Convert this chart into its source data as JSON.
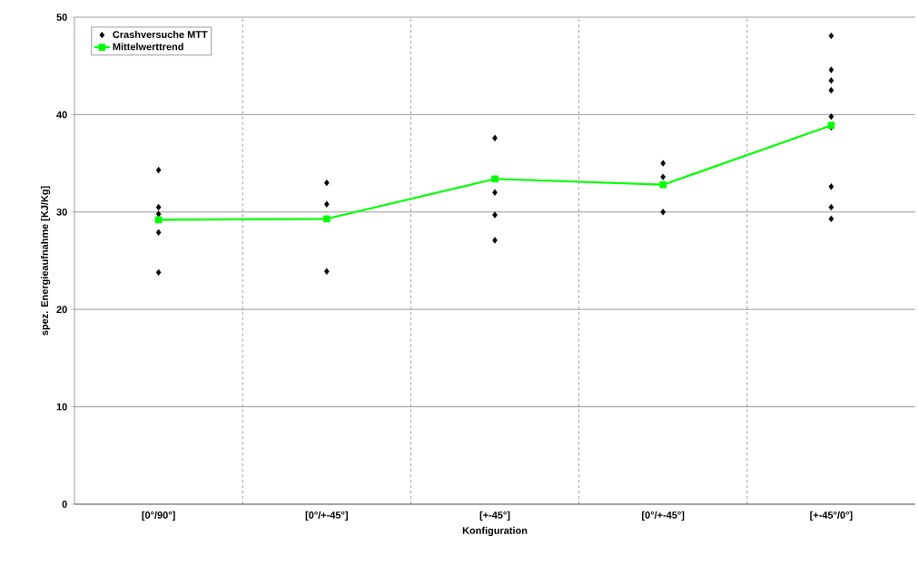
{
  "chart_data": {
    "type": "scatter",
    "xlabel": "Konfiguration",
    "ylabel": "spez. Energieaufnahme [KJ/Kg]",
    "categories": [
      "[0°/90°]",
      "[0°/+-45°]",
      "[+-45°]",
      "[0°/+-45°]",
      "[+-45°/0°]"
    ],
    "series": [
      {
        "name": "Crashversuche MTT",
        "color": "#000000",
        "marker": "diamond",
        "values": [
          34.3,
          33.0,
          37.6,
          35.0,
          48.1
        ]
      },
      {
        "color": "#000000",
        "marker": "diamond",
        "values": [
          30.5,
          30.8,
          32.0,
          33.6,
          44.6
        ]
      },
      {
        "color": "#000000",
        "marker": "diamond",
        "values": [
          29.8,
          23.9,
          29.7,
          30.0,
          43.5
        ]
      },
      {
        "color": "#000000",
        "marker": "diamond",
        "values": [
          27.9,
          null,
          27.1,
          null,
          42.5
        ]
      },
      {
        "color": "#000000",
        "marker": "diamond",
        "values": [
          23.8,
          null,
          null,
          null,
          39.8
        ]
      },
      {
        "color": "#000000",
        "marker": "diamond",
        "values": [
          null,
          null,
          null,
          null,
          38.7
        ]
      },
      {
        "color": "#000000",
        "marker": "diamond",
        "values": [
          null,
          null,
          null,
          null,
          32.6
        ]
      },
      {
        "color": "#000000",
        "marker": "diamond",
        "values": [
          null,
          null,
          null,
          null,
          30.5
        ]
      },
      {
        "color": "#000000",
        "marker": "diamond",
        "values": [
          null,
          null,
          null,
          null,
          29.3
        ]
      },
      {
        "name": "Mittelwerttrend",
        "type": "line",
        "color": "#00ff00",
        "marker": "square",
        "line_style": "solid",
        "values": [
          29.2,
          29.3,
          33.4,
          32.8,
          38.9
        ]
      }
    ],
    "ylim": [
      0,
      50
    ],
    "yticks": [
      0,
      10,
      20,
      30,
      40,
      50
    ],
    "grid": true,
    "legend": "top left"
  }
}
